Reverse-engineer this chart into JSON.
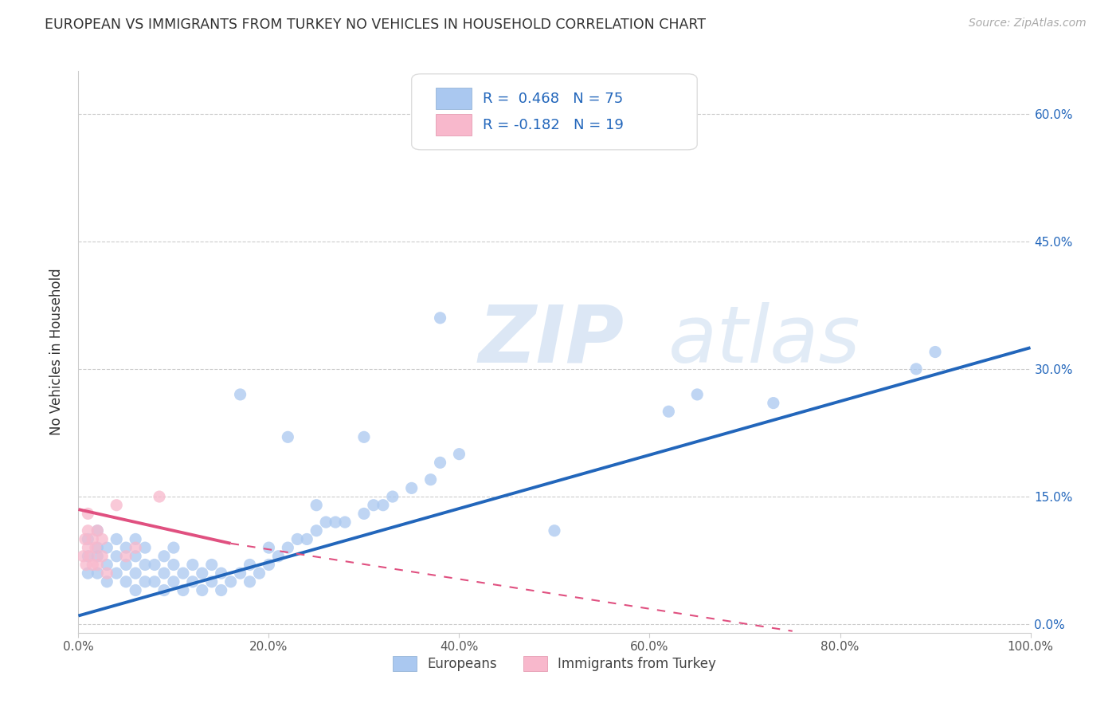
{
  "title": "EUROPEAN VS IMMIGRANTS FROM TURKEY NO VEHICLES IN HOUSEHOLD CORRELATION CHART",
  "source": "Source: ZipAtlas.com",
  "ylabel": "No Vehicles in Household",
  "xlim": [
    0.0,
    1.0
  ],
  "ylim": [
    -0.01,
    0.65
  ],
  "yticks": [
    0.0,
    0.15,
    0.3,
    0.45,
    0.6
  ],
  "ytick_labels": [
    "0.0%",
    "15.0%",
    "30.0%",
    "45.0%",
    "60.0%"
  ],
  "xticks": [
    0.0,
    0.2,
    0.4,
    0.6,
    0.8,
    1.0
  ],
  "xtick_labels": [
    "0.0%",
    "20.0%",
    "40.0%",
    "60.0%",
    "80.0%",
    "100.0%"
  ],
  "blue_R": 0.468,
  "blue_N": 75,
  "pink_R": -0.182,
  "pink_N": 19,
  "blue_color": "#aac8f0",
  "blue_line_color": "#2266bb",
  "pink_color": "#f8b8cc",
  "pink_line_color": "#e05080",
  "legend_label_blue": "Europeans",
  "legend_label_pink": "Immigrants from Turkey",
  "blue_line_x0": 0.0,
  "blue_line_y0": 0.01,
  "blue_line_x1": 1.0,
  "blue_line_y1": 0.325,
  "pink_line_solid_x0": 0.0,
  "pink_line_solid_y0": 0.135,
  "pink_line_solid_x1": 0.16,
  "pink_line_solid_y1": 0.095,
  "pink_line_dash_x0": 0.16,
  "pink_line_dash_y0": 0.095,
  "pink_line_dash_x1": 0.75,
  "pink_line_dash_y1": -0.008,
  "blue_scatter_x": [
    0.01,
    0.01,
    0.01,
    0.02,
    0.02,
    0.02,
    0.02,
    0.03,
    0.03,
    0.03,
    0.04,
    0.04,
    0.04,
    0.05,
    0.05,
    0.05,
    0.06,
    0.06,
    0.06,
    0.06,
    0.07,
    0.07,
    0.07,
    0.08,
    0.08,
    0.09,
    0.09,
    0.09,
    0.1,
    0.1,
    0.1,
    0.11,
    0.11,
    0.12,
    0.12,
    0.13,
    0.13,
    0.14,
    0.14,
    0.15,
    0.15,
    0.16,
    0.17,
    0.18,
    0.18,
    0.19,
    0.2,
    0.2,
    0.21,
    0.22,
    0.23,
    0.24,
    0.25,
    0.26,
    0.27,
    0.28,
    0.3,
    0.31,
    0.32,
    0.33,
    0.35,
    0.37,
    0.38,
    0.4,
    0.5,
    0.62,
    0.65,
    0.73,
    0.88,
    0.9,
    0.38,
    0.3,
    0.25,
    0.22,
    0.17
  ],
  "blue_scatter_y": [
    0.06,
    0.08,
    0.1,
    0.06,
    0.08,
    0.09,
    0.11,
    0.05,
    0.07,
    0.09,
    0.06,
    0.08,
    0.1,
    0.05,
    0.07,
    0.09,
    0.04,
    0.06,
    0.08,
    0.1,
    0.05,
    0.07,
    0.09,
    0.05,
    0.07,
    0.04,
    0.06,
    0.08,
    0.05,
    0.07,
    0.09,
    0.04,
    0.06,
    0.05,
    0.07,
    0.04,
    0.06,
    0.05,
    0.07,
    0.04,
    0.06,
    0.05,
    0.06,
    0.05,
    0.07,
    0.06,
    0.07,
    0.09,
    0.08,
    0.09,
    0.1,
    0.1,
    0.11,
    0.12,
    0.12,
    0.12,
    0.13,
    0.14,
    0.14,
    0.15,
    0.16,
    0.17,
    0.19,
    0.2,
    0.11,
    0.25,
    0.27,
    0.26,
    0.3,
    0.32,
    0.36,
    0.22,
    0.14,
    0.22,
    0.27
  ],
  "pink_scatter_x": [
    0.005,
    0.007,
    0.008,
    0.01,
    0.01,
    0.01,
    0.012,
    0.015,
    0.015,
    0.018,
    0.02,
    0.02,
    0.025,
    0.025,
    0.03,
    0.04,
    0.05,
    0.06,
    0.085
  ],
  "pink_scatter_y": [
    0.08,
    0.1,
    0.07,
    0.09,
    0.11,
    0.13,
    0.08,
    0.07,
    0.1,
    0.09,
    0.07,
    0.11,
    0.08,
    0.1,
    0.06,
    0.14,
    0.08,
    0.09,
    0.15
  ]
}
